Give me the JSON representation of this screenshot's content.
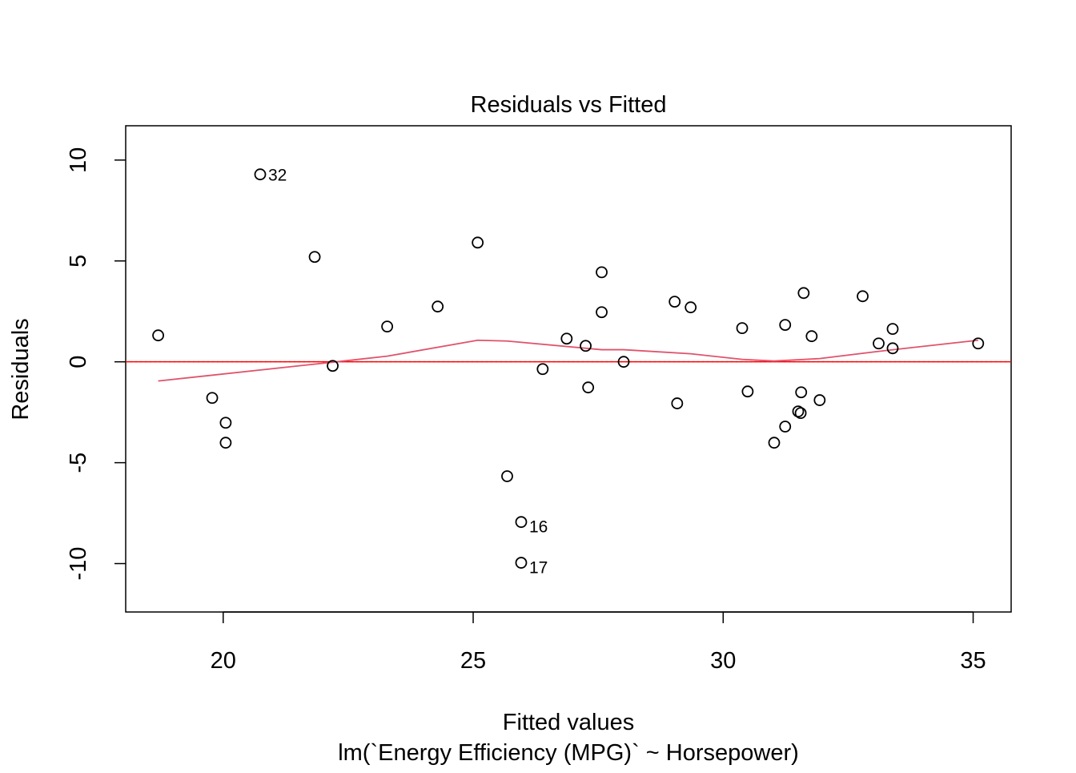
{
  "chart_data": {
    "type": "scatter",
    "title": "Residuals vs Fitted",
    "xlabel": "Fitted values",
    "subtitle": "lm(`Energy Efficiency (MPG)` ~ Horsepower)",
    "ylabel": "Residuals",
    "xlim": [
      18.05,
      35.76
    ],
    "ylim": [
      -12.4,
      11.7
    ],
    "x_ticks": [
      20,
      25,
      30,
      35
    ],
    "x_tick_labels": [
      "20",
      "25",
      "30",
      "35"
    ],
    "y_ticks": [
      -10,
      -5,
      0,
      5,
      10
    ],
    "y_tick_labels": [
      "-10",
      "-5",
      "0",
      "5",
      "10"
    ],
    "grid": false,
    "points": [
      {
        "x": 18.7,
        "y": 1.31
      },
      {
        "x": 19.78,
        "y": -1.79
      },
      {
        "x": 20.05,
        "y": -3.02
      },
      {
        "x": 20.05,
        "y": -4.01
      },
      {
        "x": 20.74,
        "y": 9.29,
        "label": "32"
      },
      {
        "x": 21.83,
        "y": 5.2
      },
      {
        "x": 22.19,
        "y": -0.2
      },
      {
        "x": 23.28,
        "y": 1.75
      },
      {
        "x": 24.29,
        "y": 2.74
      },
      {
        "x": 25.09,
        "y": 5.91
      },
      {
        "x": 25.68,
        "y": -5.67
      },
      {
        "x": 25.96,
        "y": -7.94,
        "label": "16"
      },
      {
        "x": 25.96,
        "y": -9.96,
        "label": "17"
      },
      {
        "x": 26.39,
        "y": -0.36
      },
      {
        "x": 26.87,
        "y": 1.15
      },
      {
        "x": 27.25,
        "y": 0.79
      },
      {
        "x": 27.3,
        "y": -1.27
      },
      {
        "x": 27.57,
        "y": 4.44
      },
      {
        "x": 27.57,
        "y": 2.46
      },
      {
        "x": 28.01,
        "y": 0.0
      },
      {
        "x": 29.03,
        "y": 2.98
      },
      {
        "x": 29.08,
        "y": -2.06
      },
      {
        "x": 29.35,
        "y": 2.7
      },
      {
        "x": 30.38,
        "y": 1.67
      },
      {
        "x": 30.49,
        "y": -1.47
      },
      {
        "x": 31.02,
        "y": -4.01
      },
      {
        "x": 31.24,
        "y": 1.83
      },
      {
        "x": 31.24,
        "y": -3.21
      },
      {
        "x": 31.5,
        "y": -2.46
      },
      {
        "x": 31.55,
        "y": -2.54
      },
      {
        "x": 31.56,
        "y": -1.51
      },
      {
        "x": 31.61,
        "y": 3.41
      },
      {
        "x": 31.77,
        "y": 1.27
      },
      {
        "x": 31.93,
        "y": -1.9
      },
      {
        "x": 32.79,
        "y": 3.25
      },
      {
        "x": 33.11,
        "y": 0.91
      },
      {
        "x": 33.39,
        "y": 1.63
      },
      {
        "x": 33.39,
        "y": 0.67
      },
      {
        "x": 35.1,
        "y": 0.91
      }
    ],
    "smoother": {
      "color": "#DF536B",
      "x": [
        18.7,
        22.26,
        23.28,
        25.09,
        25.68,
        27.57,
        28.01,
        29.35,
        30.38,
        31.02,
        31.93,
        33.11,
        35.1
      ],
      "y": [
        -0.95,
        0.0,
        0.28,
        1.07,
        1.03,
        0.6,
        0.6,
        0.4,
        0.12,
        0.04,
        0.16,
        0.52,
        1.07
      ]
    },
    "reference_line": {
      "y": 0,
      "color": "#FF0000"
    }
  }
}
